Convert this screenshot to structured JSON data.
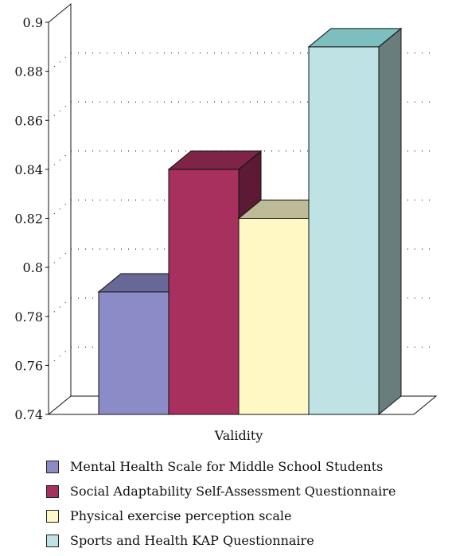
{
  "chart_data": {
    "type": "bar",
    "style": "3d-clustered",
    "categories": [
      "Validity"
    ],
    "xlabel": "Validity",
    "ylabel": "",
    "title": "",
    "ylim": [
      0.74,
      0.9
    ],
    "yticks": [
      "0.74",
      "0.76",
      "0.78",
      "0.8",
      "0.82",
      "0.84",
      "0.86",
      "0.88",
      "0.9"
    ],
    "grid": "dotted-horizontal",
    "legend_position": "bottom",
    "series": [
      {
        "name": "Mental Health Scale for Middle School Students",
        "values": [
          0.79
        ],
        "color": "#8B8BC8"
      },
      {
        "name": "Social Adaptability Self-Assessment Questionnaire",
        "values": [
          0.84
        ],
        "color": "#A8305F"
      },
      {
        "name": "Physical exercise perception scale",
        "values": [
          0.82
        ],
        "color": "#FFF8C4"
      },
      {
        "name": "Sports and Health KAP Questionnaire",
        "values": [
          0.89
        ],
        "color": "#BFE3E4"
      }
    ]
  }
}
